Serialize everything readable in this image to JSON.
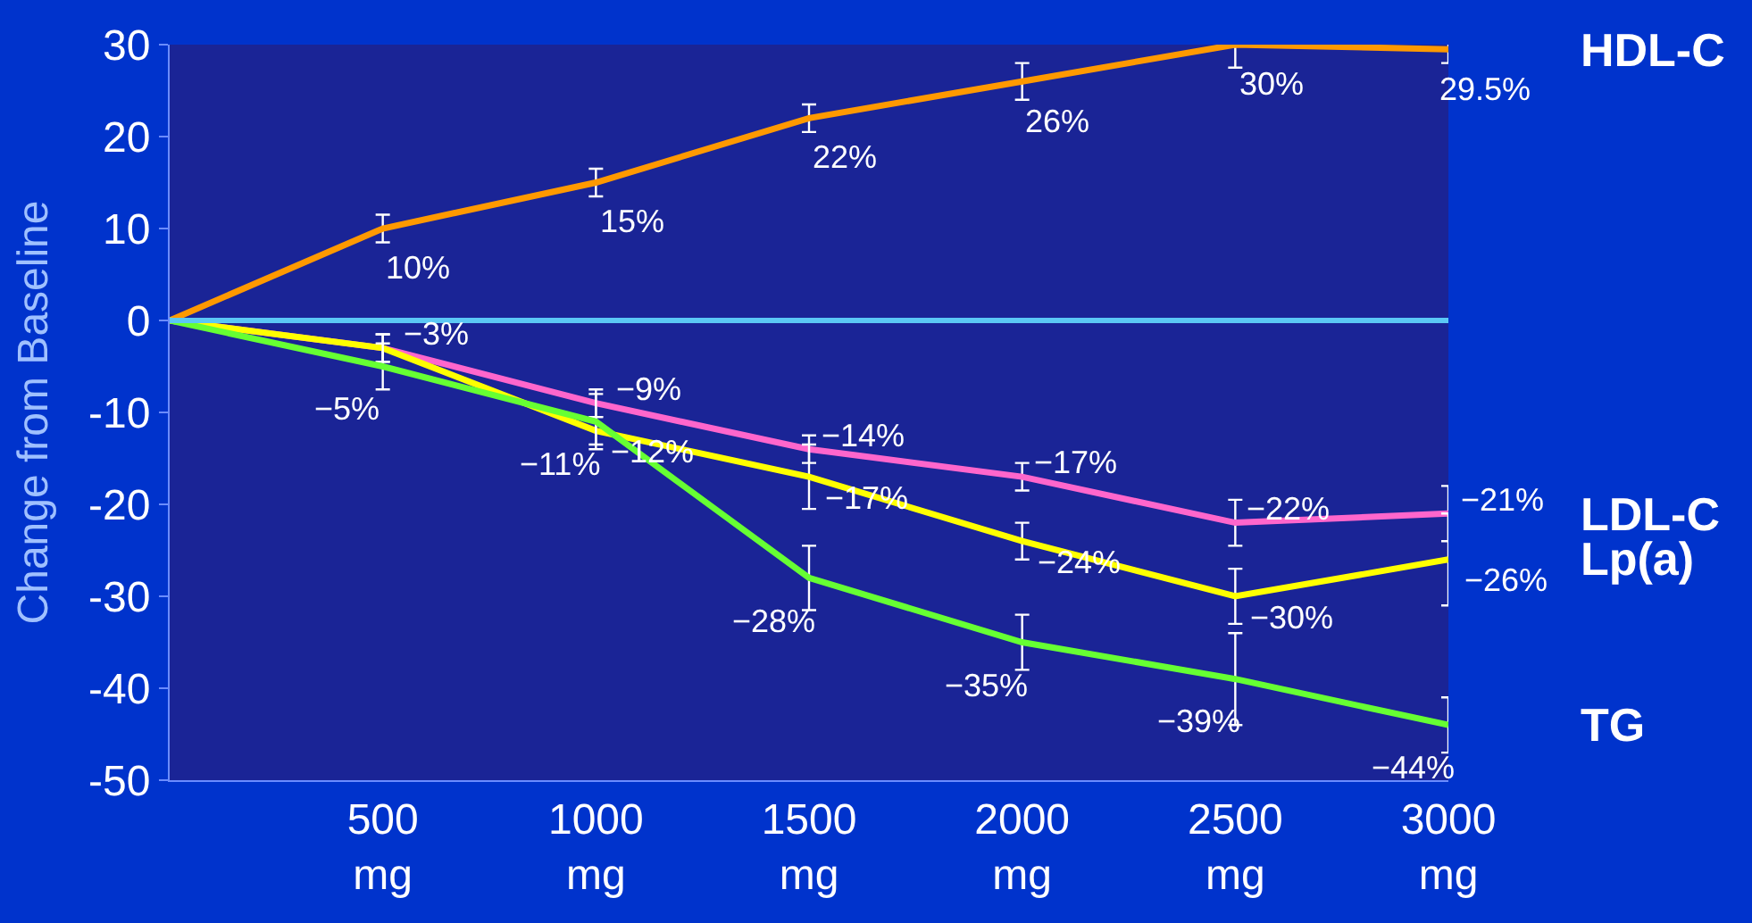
{
  "chart_data": {
    "type": "line",
    "ylabel": "Change from Baseline",
    "x": [
      0,
      500,
      1000,
      1500,
      2000,
      2500,
      3000
    ],
    "xlim": [
      0,
      3000
    ],
    "xticks": [
      {
        "value": 500,
        "label": "500\nmg"
      },
      {
        "value": 1000,
        "label": "1000\nmg"
      },
      {
        "value": 1500,
        "label": "1500\nmg"
      },
      {
        "value": 2000,
        "label": "2000\nmg"
      },
      {
        "value": 2500,
        "label": "2500\nmg"
      },
      {
        "value": 3000,
        "label": "3000\nmg"
      }
    ],
    "ylim": [
      -50,
      30
    ],
    "yticks": [
      -50,
      -40,
      -30,
      -20,
      -10,
      0,
      10,
      20,
      30
    ],
    "series": [
      {
        "name": "HDL-C",
        "color": "#ff9900",
        "values": [
          0,
          10,
          15,
          22,
          26,
          30,
          29.5
        ],
        "errors": [
          null,
          1.5,
          1.5,
          1.5,
          2,
          2.5,
          1.5
        ],
        "value_labels": [
          null,
          "10%",
          "15%",
          "22%",
          "26%",
          "30%",
          "29.5%"
        ]
      },
      {
        "name": "LDL-C",
        "color": "#ff66cc",
        "values": [
          0,
          -3,
          -9,
          -14,
          -17,
          -22,
          -21
        ],
        "errors": [
          null,
          1.5,
          1.5,
          1.5,
          1.5,
          2.5,
          3
        ],
        "value_labels": [
          null,
          "−3%",
          "−9%",
          "−14%",
          "−17%",
          "−22%",
          "−21%"
        ]
      },
      {
        "name": "Lp(a)",
        "color": "#ffff00",
        "values": [
          0,
          -3,
          -12,
          -17,
          -24,
          -30,
          -26
        ],
        "errors": [
          null,
          1.5,
          1.5,
          3.5,
          2,
          3,
          5
        ],
        "value_labels": [
          null,
          null,
          "−12%",
          "−17%",
          "−24%",
          "−30%",
          "−26%"
        ]
      },
      {
        "name": "TG",
        "color": "#66ff33",
        "values": [
          0,
          -5,
          -11,
          -28,
          -35,
          -39,
          -44
        ],
        "errors": [
          null,
          2.5,
          3,
          3.5,
          3,
          5,
          3
        ],
        "value_labels": [
          null,
          "−5%",
          "−11%",
          "−28%",
          "−35%",
          "−39%",
          "−44%"
        ]
      }
    ],
    "ref_lines": [
      {
        "axis": "y",
        "value": 0,
        "color": "#5bc8f5"
      }
    ],
    "grid": false,
    "legend": false,
    "marker": "none",
    "line_style": "solid"
  }
}
